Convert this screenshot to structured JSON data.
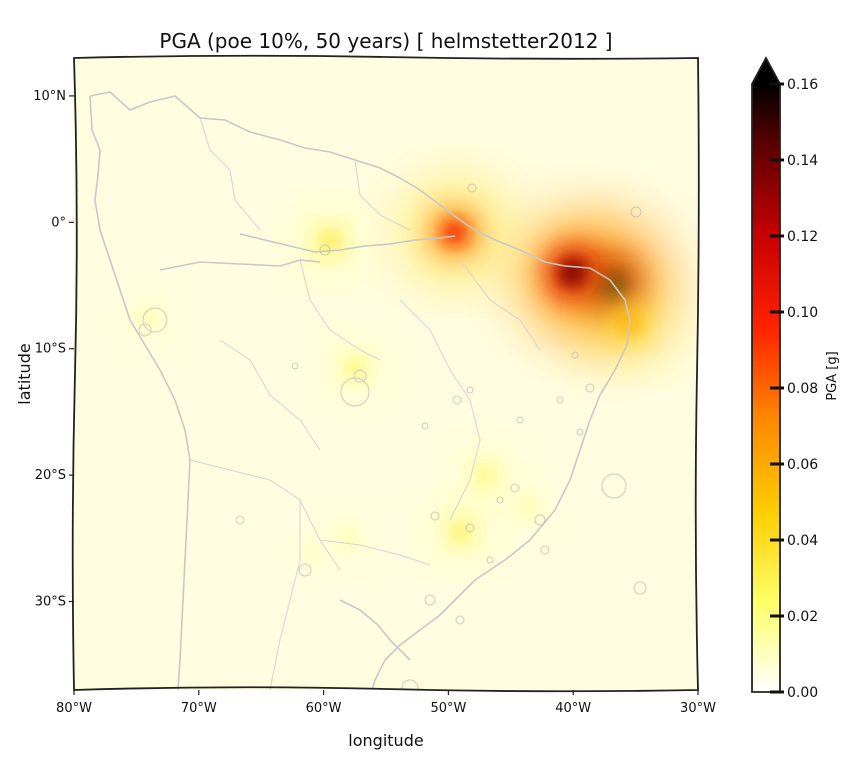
{
  "title": "PGA (poe 10%, 50 years) [ helmstetter2012 ]",
  "xlabel": "longitude",
  "ylabel": "latitude",
  "colorbar": {
    "label": "PGA [g]",
    "ticks": [
      "0.00",
      "0.02",
      "0.04",
      "0.06",
      "0.08",
      "0.10",
      "0.12",
      "0.14",
      "0.16"
    ],
    "range": [
      0.0,
      0.16
    ],
    "extend": "max",
    "colormap": "hot_r",
    "colors": [
      "#ffffff",
      "#ffff66",
      "#ffcc00",
      "#ff8800",
      "#ff2200",
      "#c80000",
      "#5a0000",
      "#000000"
    ]
  },
  "chart_data": {
    "type": "heatmap",
    "title": "PGA (poe 10%, 50 years) [ helmstetter2012 ]",
    "xlabel": "longitude",
    "ylabel": "latitude",
    "xlim": [
      -80,
      -30
    ],
    "ylim": [
      -37,
      13
    ],
    "xticks": [
      -80,
      -70,
      -60,
      -50,
      -40,
      -30
    ],
    "xtick_labels": [
      "80°W",
      "70°W",
      "60°W",
      "50°W",
      "40°W",
      "30°W"
    ],
    "yticks": [
      10,
      0,
      -10,
      -20,
      -30
    ],
    "ytick_labels": [
      "10°N",
      "0°",
      "10°S",
      "20°S",
      "30°S"
    ],
    "grid": false,
    "hotspots": [
      {
        "lon": -37.0,
        "lat": -5.0,
        "pga": 0.16
      },
      {
        "lon": -40.0,
        "lat": -4.0,
        "pga": 0.14
      },
      {
        "lon": -35.5,
        "lat": -8.0,
        "pga": 0.06
      },
      {
        "lon": -49.5,
        "lat": -0.8,
        "pga": 0.1
      },
      {
        "lon": -59.5,
        "lat": -1.5,
        "pga": 0.04
      },
      {
        "lon": -57.5,
        "lat": -11.5,
        "pga": 0.03
      },
      {
        "lon": -74.0,
        "lat": -7.5,
        "pga": 0.02
      },
      {
        "lon": -47.0,
        "lat": -20.0,
        "pga": 0.03
      },
      {
        "lon": -49.0,
        "lat": -24.5,
        "pga": 0.035
      },
      {
        "lon": -43.5,
        "lat": -22.5,
        "pga": 0.02
      },
      {
        "lon": -58.0,
        "lat": -25.0,
        "pga": 0.02
      },
      {
        "lon": -61.0,
        "lat": -26.0,
        "pga": 0.015
      }
    ],
    "background_pga": 0.008
  }
}
